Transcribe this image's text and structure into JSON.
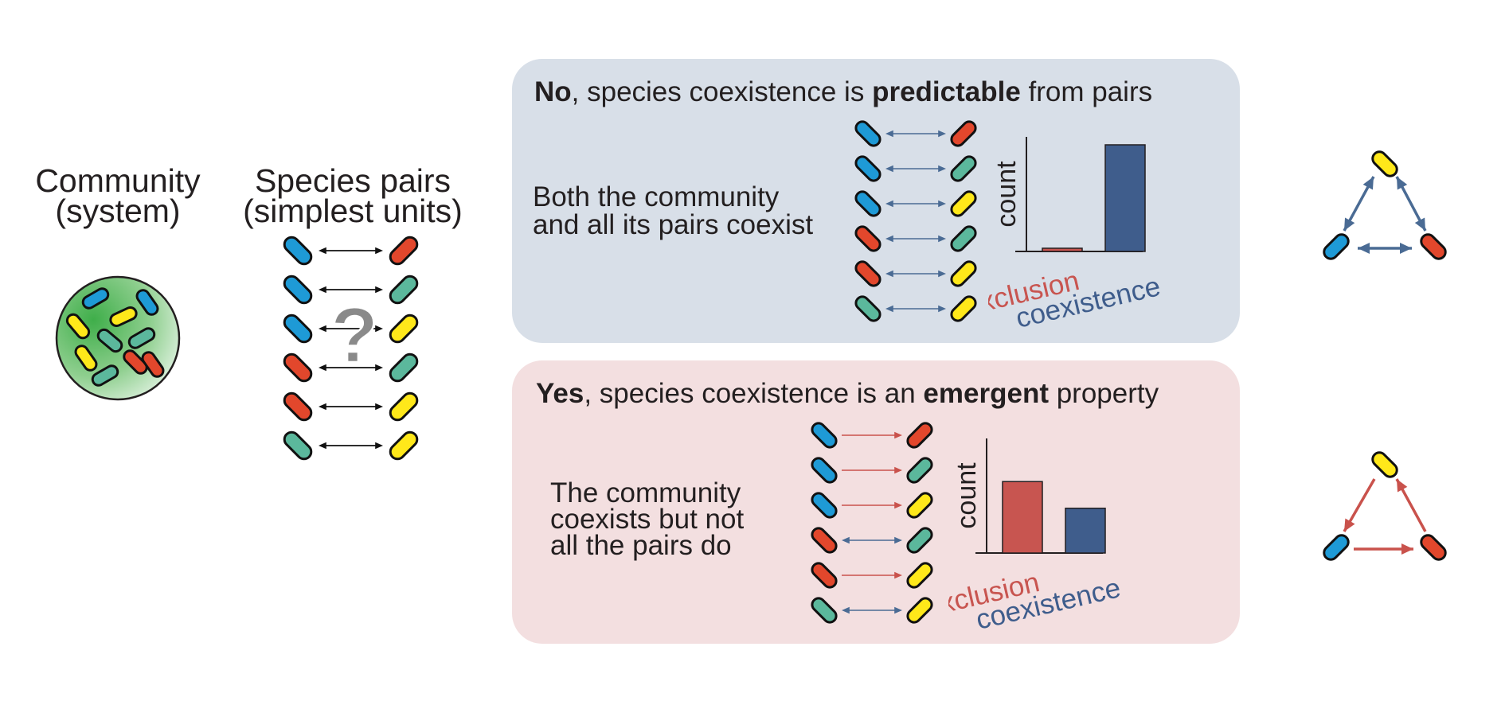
{
  "community": {
    "title_line1": "Community",
    "title_line2": "(system)"
  },
  "pairs": {
    "title_line1": "Species pairs",
    "title_line2": "(simplest units)",
    "question_mark": "?"
  },
  "no_panel": {
    "lead": "No",
    "text1": ", species coexistence is ",
    "emph": "predictable",
    "text2": " from pairs",
    "desc_line1": "Both the community",
    "desc_line2": "and all its pairs coexist",
    "count_label": "count",
    "exclusion_label": "exclusion",
    "coexistence_label": "coexistence"
  },
  "yes_panel": {
    "lead": "Yes",
    "text1": ", species coexistence is an ",
    "emph": "emergent",
    "text2": " property",
    "desc_line1": "The community",
    "desc_line2": "coexists but not",
    "desc_line3": "all the pairs do",
    "count_label": "count",
    "exclusion_label": "exclusion",
    "coexistence_label": "coexistence"
  },
  "colors": {
    "blue": "#1e9ad6",
    "red": "#e2472c",
    "teal": "#5bb89c",
    "yellow": "#ffe81a",
    "arrow_blue": "#4a6b94",
    "arrow_red": "#c9524c",
    "bar_exclusion": "#c85550",
    "bar_coexistence": "#3f5d8c",
    "panel_no": "#d8dfe8",
    "panel_yes": "#f3dfe0"
  },
  "chart_data": [
    {
      "type": "bar",
      "panel": "no",
      "categories": [
        "exclusion",
        "coexistence"
      ],
      "values": [
        0.03,
        1.0
      ],
      "ylabel": "count"
    },
    {
      "type": "bar",
      "panel": "yes",
      "categories": [
        "exclusion",
        "coexistence"
      ],
      "values": [
        0.67,
        0.42
      ],
      "ylabel": "count"
    }
  ]
}
